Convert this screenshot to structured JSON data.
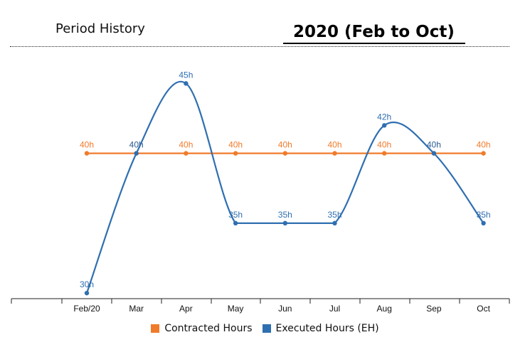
{
  "header": {
    "section_title": "Period History",
    "period_title": "2020 (Feb to Oct)"
  },
  "chart_data": {
    "type": "line",
    "categories": [
      "Feb/20",
      "Mar",
      "Apr",
      "May",
      "Jun",
      "Jul",
      "Aug",
      "Sep",
      "Oct"
    ],
    "series": [
      {
        "name": "Contracted Hours",
        "values": [
          40,
          40,
          40,
          40,
          40,
          40,
          40,
          40,
          40
        ],
        "color": "#f07b2b",
        "label_suffix": "h",
        "curve": "straight"
      },
      {
        "name": "Executed Hours (EH)",
        "values": [
          30,
          40,
          45,
          35,
          35,
          35,
          42,
          40,
          35
        ],
        "color": "#2f6fb0",
        "label_suffix": "h",
        "curve": "smooth"
      }
    ],
    "title": "",
    "xlabel": "",
    "ylabel": "",
    "ylim": [
      29.6,
      46.8
    ],
    "grid": false,
    "legend_position": "bottom-center"
  }
}
